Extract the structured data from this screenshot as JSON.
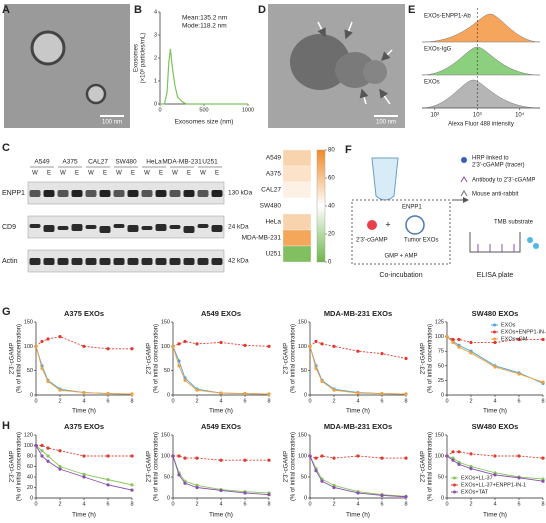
{
  "panel_letters": [
    "A",
    "B",
    "C",
    "D",
    "E",
    "F",
    "G",
    "H"
  ],
  "images": {
    "A": {
      "scale_bar": "100 nm"
    },
    "D": {
      "scale_bar": "100 nm"
    }
  },
  "flow": {
    "labels": [
      "EXOs-ENPP1-Ab",
      "EXOs-IgG",
      "EXOs"
    ],
    "xlabel": "Alexa Fluor 488 intensity",
    "xlim": [
      50,
      30000
    ],
    "xticks": [
      {
        "value": 100,
        "label": "10²"
      },
      {
        "value": 1000,
        "label": "10³"
      },
      {
        "value": 10000,
        "label": "10⁴"
      }
    ],
    "colors": [
      "#f5a55c",
      "#8ccf7e",
      "#b5b5b5"
    ]
  },
  "blot": {
    "cell_lines": [
      "A549",
      "A375",
      "CAL27",
      "SW480",
      "HeLa",
      "MDA-MB-231",
      "U251"
    ],
    "lane_types": [
      "W",
      "E"
    ],
    "rows": [
      "ENPP1",
      "CD9",
      "Actin"
    ],
    "sizes": [
      "130 kDa",
      "24 kDa",
      "42 kDa"
    ]
  },
  "elisa": {
    "tracer": [
      "HRP linked to",
      "2'3'-cGAMP (tracer)"
    ],
    "antibody": "Antibody to 2'3'-cGAMP",
    "secondary": "Mouse anti-rabbit",
    "enzyme": "ENPP1",
    "substrate_label": "2'3'-cGAMP",
    "exos": "Tumor EXOs",
    "products": "GMP + AMP",
    "step": "Co-incubation",
    "plate": "ELISA plate",
    "tmb": "TMB substrate"
  },
  "chart_data": [
    {
      "type": "line",
      "xlabel": "Exosomes  size (nm)",
      "ylabel": [
        "Exosomes",
        "(×10⁸ particles/mL)"
      ],
      "annotations": [
        "Mean:135.2 nm",
        "Mode:118.2 nm"
      ],
      "x": [
        0,
        50,
        80,
        100,
        118,
        140,
        170,
        200,
        250,
        300,
        400,
        600,
        800,
        1000
      ],
      "xlim": [
        0,
        1000
      ],
      "xticks": [
        0,
        500,
        1000
      ],
      "ylim": [
        0,
        4
      ],
      "yticks": [
        0,
        1,
        2,
        3,
        4
      ],
      "series": [
        {
          "color": "#7cc35a",
          "values": [
            0,
            0,
            0.5,
            1.8,
            2.4,
            1.6,
            0.8,
            0.3,
            0.1,
            0,
            0,
            0,
            0,
            0
          ]
        }
      ],
      "markers": false
    },
    {
      "type": "heatmap",
      "categories": [
        "A549",
        "A375",
        "CAL27",
        "SW480",
        "HeLa",
        "MDA-MB-231",
        "U251"
      ],
      "values": [
        55,
        50,
        45,
        40,
        55,
        70,
        5
      ],
      "zlim": [
        0,
        80
      ],
      "zticks": [
        0,
        20,
        40,
        60,
        80
      ],
      "colors": [
        "#6fb64a",
        "#ffffff",
        "#f08a24"
      ]
    },
    {
      "type": "line",
      "title": "A375 EXOs",
      "xlabel": "Time (h)",
      "ylabel": [
        "2'3'-cGAMP",
        "(% of initial concentration)"
      ],
      "x": [
        0,
        0.5,
        1,
        2,
        4,
        6,
        8
      ],
      "xlim": [
        0,
        8
      ],
      "xticks": [
        0,
        2,
        4,
        6,
        8
      ],
      "ylim": [
        0,
        150
      ],
      "yticks": [
        0,
        50,
        100,
        150
      ],
      "markers": true,
      "series": [
        {
          "color": "#4aa3df",
          "values": [
            100,
            60,
            30,
            12,
            5,
            3,
            2
          ]
        },
        {
          "color": "#e03a2f",
          "values": [
            100,
            110,
            115,
            120,
            100,
            95,
            95
          ]
        },
        {
          "color": "#f2a03a",
          "values": [
            100,
            55,
            28,
            10,
            5,
            3,
            2
          ]
        }
      ]
    },
    {
      "type": "line",
      "title": "A549 EXOs",
      "xlabel": "Time (h)",
      "ylabel": [
        "2'3'-cGAMP",
        "(% of initial concentration)"
      ],
      "x": [
        0,
        0.5,
        1,
        2,
        4,
        6,
        8
      ],
      "xlim": [
        0,
        8
      ],
      "xticks": [
        0,
        2,
        4,
        6,
        8
      ],
      "ylim": [
        0,
        150
      ],
      "yticks": [
        0,
        50,
        100,
        150
      ],
      "markers": true,
      "series": [
        {
          "color": "#4aa3df",
          "values": [
            100,
            70,
            35,
            12,
            4,
            3,
            2
          ]
        },
        {
          "color": "#e03a2f",
          "values": [
            100,
            105,
            110,
            105,
            108,
            102,
            100
          ]
        },
        {
          "color": "#f2a03a",
          "values": [
            100,
            60,
            30,
            10,
            4,
            3,
            2
          ]
        }
      ]
    },
    {
      "type": "line",
      "title": "MDA-MB-231 EXOs",
      "xlabel": "Time (h)",
      "ylabel": [
        "2'3'-cGAMP",
        "(% of initial concentration)"
      ],
      "x": [
        0,
        0.5,
        1,
        2,
        4,
        6,
        8
      ],
      "xlim": [
        0,
        8
      ],
      "xticks": [
        0,
        2,
        4,
        6,
        8
      ],
      "ylim": [
        0,
        150
      ],
      "yticks": [
        0,
        50,
        100,
        150
      ],
      "markers": true,
      "series": [
        {
          "color": "#4aa3df",
          "values": [
            100,
            60,
            30,
            12,
            5,
            3,
            2
          ]
        },
        {
          "color": "#e03a2f",
          "values": [
            100,
            110,
            105,
            100,
            90,
            85,
            75
          ]
        },
        {
          "color": "#f2a03a",
          "values": [
            100,
            55,
            28,
            10,
            4,
            3,
            2
          ]
        }
      ]
    },
    {
      "type": "line",
      "title": "SW480 EXOs",
      "xlabel": "Time (h)",
      "ylabel": [
        "2'3'-cGAMP",
        "(% of initial concentration)"
      ],
      "x": [
        0,
        0.5,
        1,
        2,
        4,
        6,
        8
      ],
      "xlim": [
        0,
        8
      ],
      "xticks": [
        0,
        2,
        4,
        6,
        8
      ],
      "ylim": [
        0,
        125
      ],
      "yticks": [
        0,
        25,
        50,
        75,
        100,
        125
      ],
      "markers": true,
      "legend": "upper right",
      "series": [
        {
          "name": "EXOs",
          "color": "#4aa3df",
          "values": [
            100,
            92,
            85,
            75,
            50,
            38,
            20
          ]
        },
        {
          "name": "EXOs+ENPP1-IN-1",
          "color": "#e03a2f",
          "values": [
            100,
            95,
            95,
            90,
            90,
            95,
            95
          ]
        },
        {
          "name": "EXOs+GM",
          "color": "#f2a03a",
          "values": [
            100,
            90,
            82,
            72,
            48,
            36,
            22
          ]
        }
      ]
    },
    {
      "type": "line",
      "title": "A375 EXOs",
      "xlabel": "Time (h)",
      "ylabel": [
        "2'3'-cGAMP",
        "(% of initial concentration)"
      ],
      "x": [
        0,
        0.5,
        1,
        2,
        4,
        6,
        8
      ],
      "xlim": [
        0,
        8
      ],
      "xticks": [
        0,
        2,
        4,
        6,
        8
      ],
      "ylim": [
        0,
        120
      ],
      "yticks": [
        0,
        20,
        40,
        60,
        80,
        100,
        120
      ],
      "markers": true,
      "series": [
        {
          "color": "#86c85a",
          "values": [
            100,
            90,
            80,
            60,
            45,
            35,
            25
          ]
        },
        {
          "color": "#e03a2f",
          "values": [
            100,
            100,
            95,
            90,
            80,
            80,
            80
          ]
        },
        {
          "color": "#8a4fb0",
          "values": [
            100,
            80,
            70,
            55,
            40,
            25,
            15
          ]
        }
      ]
    },
    {
      "type": "line",
      "title": "A549 EXOs",
      "xlabel": "Time (h)",
      "ylabel": [
        "2'3'-cGAMP",
        "(% of initial concentration)"
      ],
      "x": [
        0,
        0.5,
        1,
        2,
        4,
        6,
        8
      ],
      "xlim": [
        0,
        8
      ],
      "xticks": [
        0,
        2,
        4,
        6,
        8
      ],
      "ylim": [
        0,
        150
      ],
      "yticks": [
        0,
        50,
        100,
        150
      ],
      "markers": true,
      "series": [
        {
          "color": "#86c85a",
          "values": [
            100,
            60,
            40,
            30,
            20,
            15,
            12
          ]
        },
        {
          "color": "#e03a2f",
          "values": [
            100,
            100,
            95,
            95,
            90,
            90,
            90
          ]
        },
        {
          "color": "#8a4fb0",
          "values": [
            100,
            55,
            35,
            25,
            18,
            12,
            8
          ]
        }
      ]
    },
    {
      "type": "line",
      "title": "MDA-MB-231 EXOs",
      "xlabel": "Time (h)",
      "ylabel": [
        "2'3'-cGAMP",
        "(% of initial concentration)"
      ],
      "x": [
        0,
        0.5,
        1,
        2,
        4,
        6,
        8
      ],
      "xlim": [
        0,
        8
      ],
      "xticks": [
        0,
        2,
        4,
        6,
        8
      ],
      "ylim": [
        0,
        150
      ],
      "yticks": [
        0,
        50,
        100,
        150
      ],
      "markers": true,
      "series": [
        {
          "color": "#86c85a",
          "values": [
            100,
            70,
            45,
            30,
            15,
            8,
            4
          ]
        },
        {
          "color": "#e03a2f",
          "values": [
            100,
            95,
            100,
            95,
            100,
            95,
            95
          ]
        },
        {
          "color": "#8a4fb0",
          "values": [
            100,
            65,
            40,
            25,
            12,
            6,
            3
          ]
        }
      ]
    },
    {
      "type": "line",
      "title": "SW480  EXOs",
      "xlabel": "Time (h)",
      "ylabel": [
        "2'3'-cGAMP",
        "(% of initial concentration)"
      ],
      "x": [
        0,
        0.5,
        1,
        2,
        4,
        6,
        8
      ],
      "xlim": [
        0,
        8
      ],
      "xticks": [
        0,
        2,
        4,
        6,
        8
      ],
      "ylim": [
        0,
        150
      ],
      "yticks": [
        0,
        50,
        100,
        150
      ],
      "markers": true,
      "legend": "lower left",
      "series": [
        {
          "name": "EXOs+LL-37",
          "color": "#86c85a",
          "values": [
            100,
            95,
            85,
            75,
            60,
            50,
            45
          ]
        },
        {
          "name": "EXOs+LL-37+ENPP1-IN-1",
          "color": "#e03a2f",
          "values": [
            100,
            110,
            110,
            105,
            100,
            100,
            95
          ]
        },
        {
          "name": "EXOs+TAT",
          "color": "#8a4fb0",
          "values": [
            100,
            90,
            80,
            70,
            55,
            48,
            40
          ]
        }
      ]
    }
  ]
}
